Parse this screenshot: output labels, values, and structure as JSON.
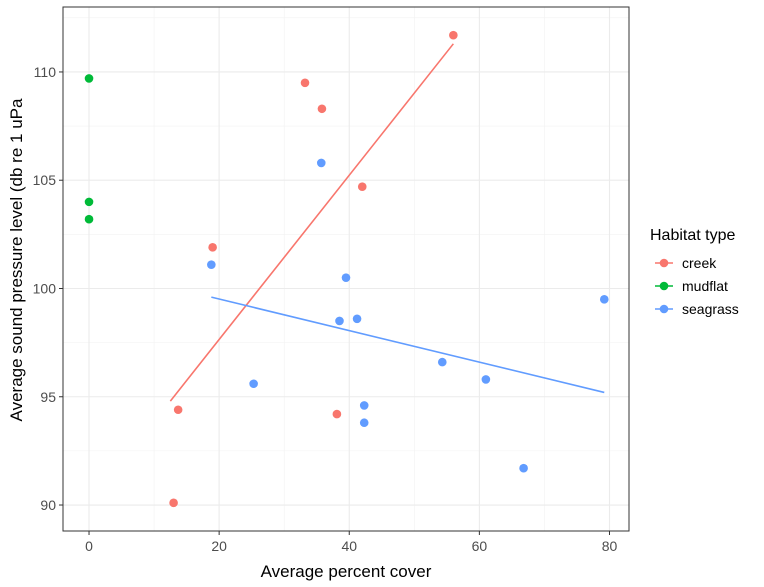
{
  "chart_data": {
    "type": "scatter",
    "xlabel": "Average percent cover",
    "ylabel": "Average sound pressure level (db re 1 uPa",
    "xlim": [
      -4,
      83
    ],
    "ylim": [
      88.8,
      113
    ],
    "x_ticks": [
      0,
      20,
      40,
      60,
      80
    ],
    "y_ticks": [
      90,
      95,
      100,
      105,
      110
    ],
    "grid": true,
    "legend": {
      "title": "Habitat type",
      "position": "right"
    },
    "series": [
      {
        "name": "creek",
        "color": "#F8766D",
        "points": [
          [
            13,
            90.1
          ],
          [
            13.7,
            94.4
          ],
          [
            19,
            101.9
          ],
          [
            33.2,
            109.5
          ],
          [
            35.8,
            108.3
          ],
          [
            38.1,
            94.2
          ],
          [
            42,
            104.7
          ],
          [
            56,
            111.7
          ]
        ],
        "trend": [
          [
            12.5,
            94.8
          ],
          [
            56,
            111.3
          ]
        ]
      },
      {
        "name": "mudflat",
        "color": "#00BA38",
        "points": [
          [
            0,
            109.7
          ],
          [
            0,
            104
          ],
          [
            0,
            103.2
          ]
        ],
        "trend": null
      },
      {
        "name": "seagrass",
        "color": "#619CFF",
        "points": [
          [
            18.8,
            101.1
          ],
          [
            25.3,
            95.6
          ],
          [
            35.7,
            105.8
          ],
          [
            38.5,
            98.5
          ],
          [
            39.5,
            100.5
          ],
          [
            41.2,
            98.6
          ],
          [
            42.3,
            94.6
          ],
          [
            42.3,
            93.8
          ],
          [
            54.3,
            96.6
          ],
          [
            61,
            95.8
          ],
          [
            66.8,
            91.7
          ],
          [
            79.2,
            99.5
          ]
        ],
        "trend": [
          [
            18.8,
            99.6
          ],
          [
            79.2,
            95.2
          ]
        ]
      }
    ]
  }
}
